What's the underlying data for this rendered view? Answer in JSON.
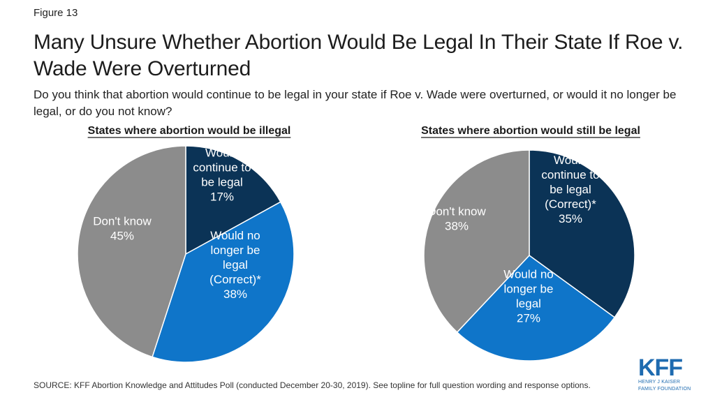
{
  "figure_label": "Figure 13",
  "title": "Many Unsure Whether Abortion Would Be Legal In Their State If Roe v. Wade Were Overturned",
  "question": "Do you think that abortion would continue to be legal in your state if Roe v. Wade were overturned, or would it no longer be legal, or do you not know?",
  "source": "SOURCE: KFF Abortion Knowledge and Attitudes Poll (conducted December 20-30, 2019). See topline for full question wording and response options.",
  "logo": {
    "mark": "KFF",
    "line1": "HENRY J KAISER",
    "line2": "FAMILY FOUNDATION"
  },
  "colors": {
    "dark_navy": "#0b3356",
    "blue": "#0f75c9",
    "gray": "#8c8c8c"
  },
  "chart_data": [
    {
      "type": "pie",
      "title": "States where abortion would be illegal",
      "slices": [
        {
          "label": [
            "Would",
            "continue to",
            "be legal",
            "17%"
          ],
          "value": 17,
          "color": "#0b3356"
        },
        {
          "label": [
            "Would no",
            "longer be",
            "legal",
            "(Correct)*",
            "38%"
          ],
          "value": 38,
          "color": "#0f75c9"
        },
        {
          "label": [
            "Don't know",
            "45%"
          ],
          "value": 45,
          "color": "#8c8c8c"
        }
      ]
    },
    {
      "type": "pie",
      "title": "States where abortion would still be legal",
      "slices": [
        {
          "label": [
            "Would",
            "continue to",
            "be legal",
            "(Correct)*",
            "35%"
          ],
          "value": 35,
          "color": "#0b3356"
        },
        {
          "label": [
            "Would no",
            "longer be",
            "legal",
            "27%"
          ],
          "value": 27,
          "color": "#0f75c9"
        },
        {
          "label": [
            "Don't know",
            "38%"
          ],
          "value": 38,
          "color": "#8c8c8c"
        }
      ]
    }
  ]
}
